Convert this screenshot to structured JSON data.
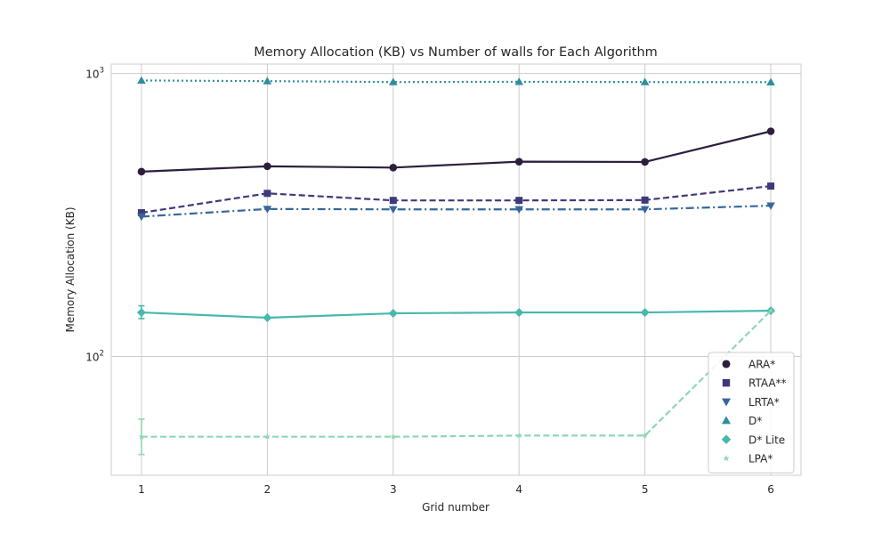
{
  "chart_data": {
    "type": "line",
    "title": "Memory Allocation (KB) vs Number of walls for Each Algorithm",
    "xlabel": "Grid number",
    "ylabel": "Memory Allocation (KB)",
    "x": [
      1,
      2,
      3,
      4,
      5,
      6
    ],
    "x_ticks": [
      "1",
      "2",
      "3",
      "4",
      "5",
      "6"
    ],
    "xlim": [
      0.76,
      6.24
    ],
    "y_scale": "log",
    "ylim": [
      38,
      1080
    ],
    "y_ticks": [
      {
        "value": 100,
        "base": "10",
        "exp": "2"
      },
      {
        "value": 1000,
        "base": "10",
        "exp": "3"
      }
    ],
    "grid": true,
    "legend_position": "lower-right",
    "series": [
      {
        "name": "ARA*",
        "color": "#2d1e3e",
        "linestyle": "solid",
        "marker": "circle",
        "values": [
          450,
          470,
          465,
          488,
          487,
          625
        ]
      },
      {
        "name": "RTAA**",
        "color": "#3e3a7a",
        "linestyle": "dashed",
        "marker": "square",
        "values": [
          322,
          377,
          356,
          356,
          357,
          400
        ]
      },
      {
        "name": "LRTA*",
        "color": "#36669a",
        "linestyle": "dashdot",
        "marker": "triangle-down",
        "values": [
          312,
          332,
          331,
          331,
          331,
          341
        ]
      },
      {
        "name": "D*",
        "color": "#2e8e9e",
        "linestyle": "dotted",
        "marker": "triangle-up",
        "values": [
          945,
          940,
          933,
          935,
          933,
          932
        ]
      },
      {
        "name": "D* Lite",
        "color": "#47b8ad",
        "linestyle": "solid",
        "marker": "diamond",
        "values": [
          143,
          137,
          142,
          143,
          143,
          145
        ],
        "error": [
          {
            "x": 1,
            "low": 136,
            "high": 151
          }
        ]
      },
      {
        "name": "LPA*",
        "color": "#8dd8b2",
        "linestyle": "dashed",
        "marker": "star",
        "values": [
          52,
          52,
          52,
          52.5,
          52.5,
          145
        ],
        "error": [
          {
            "x": 1,
            "low": 45,
            "high": 60
          }
        ]
      }
    ]
  }
}
